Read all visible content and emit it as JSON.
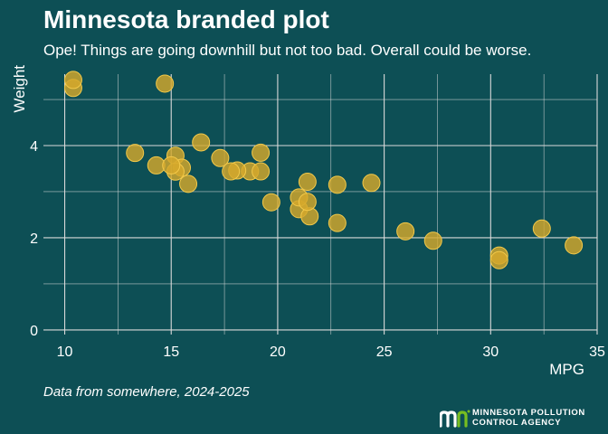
{
  "header": {
    "title": "Minnesota branded plot",
    "subtitle": "Ope! Things are going downhill but not too bad. Overall could be worse."
  },
  "caption": "Data from somewhere, 2024-2025",
  "logo": {
    "name": "mn-logo-icon",
    "line1": "MINNESOTA POLLUTION",
    "line2": "CONTROL AGENCY"
  },
  "colors": {
    "background": "#0d4f55",
    "point_fill": "#d4a82c",
    "point_stroke": "#f3c94a",
    "grid": "#d9d9d9",
    "text": "#ffffff",
    "logo_green": "#78be20"
  },
  "chart_data": {
    "type": "scatter",
    "xlabel": "MPG",
    "ylabel": "Weight",
    "xlim": [
      9,
      35
    ],
    "ylim": [
      -0.1,
      5.55
    ],
    "xticks": [
      10,
      15,
      20,
      25,
      30,
      35
    ],
    "yticks": [
      0,
      2,
      4
    ],
    "grid": true,
    "legend": "none",
    "points": [
      {
        "x": 21.0,
        "y": 2.62
      },
      {
        "x": 21.0,
        "y": 2.875
      },
      {
        "x": 22.8,
        "y": 2.32
      },
      {
        "x": 21.4,
        "y": 3.215
      },
      {
        "x": 18.7,
        "y": 3.44
      },
      {
        "x": 18.1,
        "y": 3.46
      },
      {
        "x": 14.3,
        "y": 3.57
      },
      {
        "x": 24.4,
        "y": 3.19
      },
      {
        "x": 22.8,
        "y": 3.15
      },
      {
        "x": 19.2,
        "y": 3.44
      },
      {
        "x": 17.8,
        "y": 3.44
      },
      {
        "x": 16.4,
        "y": 4.07
      },
      {
        "x": 17.3,
        "y": 3.73
      },
      {
        "x": 15.2,
        "y": 3.78
      },
      {
        "x": 10.4,
        "y": 5.25
      },
      {
        "x": 10.4,
        "y": 5.424
      },
      {
        "x": 14.7,
        "y": 5.345
      },
      {
        "x": 32.4,
        "y": 2.2
      },
      {
        "x": 30.4,
        "y": 1.615
      },
      {
        "x": 33.9,
        "y": 1.835
      },
      {
        "x": 21.5,
        "y": 2.465
      },
      {
        "x": 15.5,
        "y": 3.52
      },
      {
        "x": 15.2,
        "y": 3.435
      },
      {
        "x": 13.3,
        "y": 3.84
      },
      {
        "x": 19.2,
        "y": 3.845
      },
      {
        "x": 27.3,
        "y": 1.935
      },
      {
        "x": 26.0,
        "y": 2.14
      },
      {
        "x": 30.4,
        "y": 1.513
      },
      {
        "x": 15.8,
        "y": 3.17
      },
      {
        "x": 19.7,
        "y": 2.77
      },
      {
        "x": 15.0,
        "y": 3.57
      },
      {
        "x": 21.4,
        "y": 2.78
      }
    ]
  }
}
